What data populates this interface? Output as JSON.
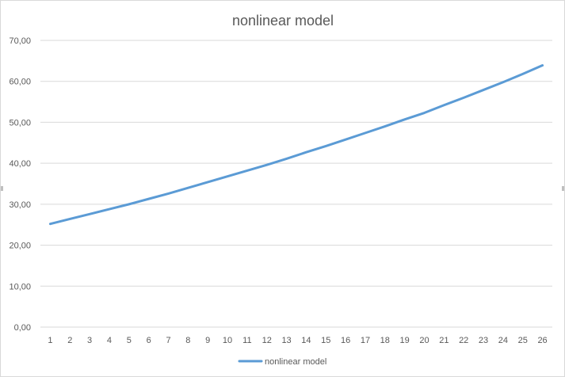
{
  "chart_data": {
    "type": "line",
    "title": "nonlinear model",
    "xlabel": "",
    "ylabel": "",
    "categories": [
      "1",
      "2",
      "3",
      "4",
      "5",
      "6",
      "7",
      "8",
      "9",
      "10",
      "11",
      "12",
      "13",
      "14",
      "15",
      "16",
      "17",
      "18",
      "19",
      "20",
      "21",
      "22",
      "23",
      "24",
      "25",
      "26"
    ],
    "y_ticks": [
      "0,00",
      "10,00",
      "20,00",
      "30,00",
      "40,00",
      "50,00",
      "60,00",
      "70,00"
    ],
    "ylim": [
      0,
      70
    ],
    "grid": true,
    "legend": "bottom",
    "series": [
      {
        "name": "nonlinear model",
        "color": "#5b9bd5",
        "values": [
          25.2,
          26.4,
          27.6,
          28.8,
          30.0,
          31.3,
          32.6,
          34.0,
          35.4,
          36.8,
          38.2,
          39.6,
          41.1,
          42.7,
          44.2,
          45.8,
          47.4,
          49.0,
          50.7,
          52.3,
          54.2,
          56.0,
          57.9,
          59.8,
          61.8,
          63.9
        ]
      }
    ]
  }
}
